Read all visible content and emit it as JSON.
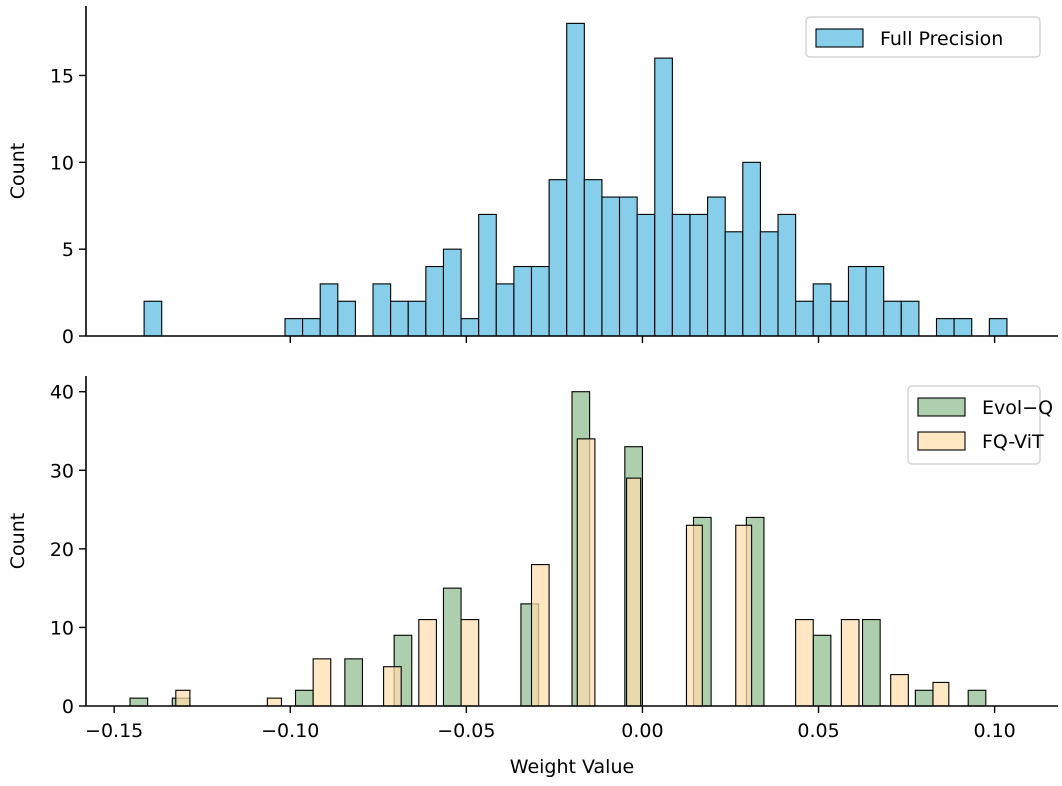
{
  "chart_data": [
    {
      "type": "bar",
      "panel": "top",
      "ylabel": "Count",
      "xlabel": "",
      "xlim": [
        -0.158,
        0.118
      ],
      "ylim": [
        0,
        19
      ],
      "yticks": [
        0,
        5,
        10,
        15
      ],
      "xticks": [
        -0.1,
        -0.05,
        0.0,
        0.05,
        0.1
      ],
      "x_tick_labels_shown": false,
      "legend_position": "top-right",
      "series": [
        {
          "name": "Full Precision",
          "color": "#87ceeb",
          "bins": [
            {
              "x0": -0.1415,
              "x1": -0.1365,
              "count": 2
            },
            {
              "x0": -0.1015,
              "x1": -0.0965,
              "count": 1
            },
            {
              "x0": -0.0965,
              "x1": -0.0915,
              "count": 1
            },
            {
              "x0": -0.0915,
              "x1": -0.0865,
              "count": 3
            },
            {
              "x0": -0.0865,
              "x1": -0.0815,
              "count": 2
            },
            {
              "x0": -0.0765,
              "x1": -0.0715,
              "count": 3
            },
            {
              "x0": -0.0715,
              "x1": -0.0665,
              "count": 2
            },
            {
              "x0": -0.0665,
              "x1": -0.0615,
              "count": 2
            },
            {
              "x0": -0.0615,
              "x1": -0.0565,
              "count": 4
            },
            {
              "x0": -0.0565,
              "x1": -0.0515,
              "count": 5
            },
            {
              "x0": -0.0515,
              "x1": -0.0465,
              "count": 1
            },
            {
              "x0": -0.0465,
              "x1": -0.0415,
              "count": 7
            },
            {
              "x0": -0.0415,
              "x1": -0.0365,
              "count": 3
            },
            {
              "x0": -0.0365,
              "x1": -0.0315,
              "count": 4
            },
            {
              "x0": -0.0315,
              "x1": -0.0265,
              "count": 4
            },
            {
              "x0": -0.0265,
              "x1": -0.0215,
              "count": 9
            },
            {
              "x0": -0.0215,
              "x1": -0.0165,
              "count": 18
            },
            {
              "x0": -0.0165,
              "x1": -0.0115,
              "count": 9
            },
            {
              "x0": -0.0115,
              "x1": -0.0065,
              "count": 8
            },
            {
              "x0": -0.0065,
              "x1": -0.0015,
              "count": 8
            },
            {
              "x0": -0.0015,
              "x1": 0.0035,
              "count": 7
            },
            {
              "x0": 0.0035,
              "x1": 0.0085,
              "count": 16
            },
            {
              "x0": 0.0085,
              "x1": 0.0135,
              "count": 7
            },
            {
              "x0": 0.0135,
              "x1": 0.0185,
              "count": 7
            },
            {
              "x0": 0.0185,
              "x1": 0.0235,
              "count": 8
            },
            {
              "x0": 0.0235,
              "x1": 0.0285,
              "count": 6
            },
            {
              "x0": 0.0285,
              "x1": 0.0335,
              "count": 10
            },
            {
              "x0": 0.0335,
              "x1": 0.0385,
              "count": 6
            },
            {
              "x0": 0.0385,
              "x1": 0.0435,
              "count": 7
            },
            {
              "x0": 0.0435,
              "x1": 0.0485,
              "count": 2
            },
            {
              "x0": 0.0485,
              "x1": 0.0535,
              "count": 3
            },
            {
              "x0": 0.0535,
              "x1": 0.0585,
              "count": 2
            },
            {
              "x0": 0.0585,
              "x1": 0.0635,
              "count": 4
            },
            {
              "x0": 0.0635,
              "x1": 0.0685,
              "count": 4
            },
            {
              "x0": 0.0685,
              "x1": 0.0735,
              "count": 2
            },
            {
              "x0": 0.0735,
              "x1": 0.0785,
              "count": 2
            },
            {
              "x0": 0.0835,
              "x1": 0.0885,
              "count": 1
            },
            {
              "x0": 0.0885,
              "x1": 0.0935,
              "count": 1
            },
            {
              "x0": 0.0985,
              "x1": 0.1035,
              "count": 1
            }
          ]
        }
      ]
    },
    {
      "type": "bar",
      "panel": "bottom",
      "ylabel": "Count",
      "xlabel": "Weight Value",
      "xlim": [
        -0.158,
        0.118
      ],
      "ylim": [
        0,
        42
      ],
      "yticks": [
        0,
        10,
        20,
        30,
        40
      ],
      "xticks": [
        -0.15,
        -0.1,
        -0.05,
        0.0,
        0.05,
        0.1
      ],
      "x_tick_labels": [
        "−0.15",
        "−0.10",
        "−0.05",
        "0.00",
        "0.05",
        "0.10"
      ],
      "legend_position": "top-right",
      "series": [
        {
          "name": "Evol−Q",
          "color": "#8fbc8f",
          "bins": [
            {
              "x0": -0.1455,
              "x1": -0.1405,
              "count": 1
            },
            {
              "x0": -0.1335,
              "x1": -0.1285,
              "count": 1
            },
            {
              "x0": -0.0985,
              "x1": -0.0935,
              "count": 2
            },
            {
              "x0": -0.0845,
              "x1": -0.0795,
              "count": 6
            },
            {
              "x0": -0.0705,
              "x1": -0.0655,
              "count": 9
            },
            {
              "x0": -0.0565,
              "x1": -0.0515,
              "count": 15
            },
            {
              "x0": -0.0345,
              "x1": -0.0295,
              "count": 13
            },
            {
              "x0": -0.02,
              "x1": -0.015,
              "count": 40
            },
            {
              "x0": -0.005,
              "x1": 0.0,
              "count": 33
            },
            {
              "x0": 0.0145,
              "x1": 0.0195,
              "count": 24
            },
            {
              "x0": 0.0295,
              "x1": 0.0345,
              "count": 24
            },
            {
              "x0": 0.0485,
              "x1": 0.0535,
              "count": 9
            },
            {
              "x0": 0.0625,
              "x1": 0.0675,
              "count": 11
            },
            {
              "x0": 0.0775,
              "x1": 0.0825,
              "count": 2
            },
            {
              "x0": 0.0925,
              "x1": 0.0975,
              "count": 2
            }
          ]
        },
        {
          "name": "FQ-ViT",
          "color": "#ffdead",
          "bins": [
            {
              "x0": -0.1325,
              "x1": -0.1285,
              "count": 2
            },
            {
              "x0": -0.1065,
              "x1": -0.1025,
              "count": 1
            },
            {
              "x0": -0.0935,
              "x1": -0.0885,
              "count": 6
            },
            {
              "x0": -0.0735,
              "x1": -0.0685,
              "count": 5
            },
            {
              "x0": -0.0635,
              "x1": -0.0585,
              "count": 11
            },
            {
              "x0": -0.0515,
              "x1": -0.0465,
              "count": 11
            },
            {
              "x0": -0.0315,
              "x1": -0.0265,
              "count": 18
            },
            {
              "x0": -0.0185,
              "x1": -0.0135,
              "count": 34
            },
            {
              "x0": -0.0045,
              "x1": -0.0005,
              "count": 29
            },
            {
              "x0": 0.0125,
              "x1": 0.017,
              "count": 23
            },
            {
              "x0": 0.0265,
              "x1": 0.031,
              "count": 23
            },
            {
              "x0": 0.0435,
              "x1": 0.0485,
              "count": 11
            },
            {
              "x0": 0.0565,
              "x1": 0.0615,
              "count": 11
            },
            {
              "x0": 0.0705,
              "x1": 0.0755,
              "count": 4
            },
            {
              "x0": 0.0825,
              "x1": 0.087,
              "count": 3
            }
          ]
        }
      ]
    }
  ]
}
